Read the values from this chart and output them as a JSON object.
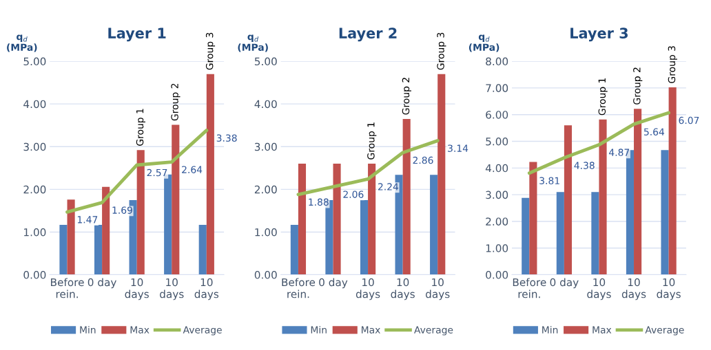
{
  "chart_data": [
    {
      "type": "bar",
      "title": "Layer 1",
      "ylabel": "q$_{d}$\n(MPa)",
      "categories": [
        "Before\nrein.",
        "0 day",
        "10\ndays",
        "10\ndays",
        "10\ndays"
      ],
      "ylim": [
        0,
        5
      ],
      "yticks": [
        {
          "value": 0,
          "label": "0.00"
        },
        {
          "value": 1,
          "label": "1.00"
        },
        {
          "value": 2,
          "label": "2.00"
        },
        {
          "value": 3,
          "label": "3.00"
        },
        {
          "value": 4,
          "label": "4.00"
        },
        {
          "value": 5,
          "label": "5.00"
        }
      ],
      "grid": "y",
      "legend": "bottom",
      "series": [
        {
          "name": "Min",
          "type": "bar",
          "color": "#4f81bd",
          "values": [
            1.17,
            1.17,
            1.75,
            2.35,
            1.17
          ]
        },
        {
          "name": "Max",
          "type": "bar",
          "color": "#c0504d",
          "values": [
            1.76,
            2.06,
            2.92,
            3.51,
            4.7
          ]
        },
        {
          "name": "Average",
          "type": "line",
          "color": "#9bbb59",
          "values": [
            1.47,
            1.69,
            2.57,
            2.64,
            3.38
          ],
          "value_labels": [
            "1.47",
            "1.69",
            "2.57",
            "2.64",
            "3.38"
          ]
        }
      ],
      "annotations": [
        "Group 1",
        "Group 2",
        "Group 3"
      ]
    },
    {
      "type": "bar",
      "title": "Layer 2",
      "ylabel": "q$_{d}$\n(MPa)",
      "categories": [
        "Before\nrein.",
        "0 day",
        "10\ndays",
        "10\ndays",
        "10\ndays"
      ],
      "ylim": [
        0,
        5
      ],
      "yticks": [
        {
          "value": 0,
          "label": "0.00"
        },
        {
          "value": 1,
          "label": "1.00"
        },
        {
          "value": 2,
          "label": "2.00"
        },
        {
          "value": 3,
          "label": "3.00"
        },
        {
          "value": 4,
          "label": "4.00"
        },
        {
          "value": 5,
          "label": "5.00"
        }
      ],
      "grid": "y",
      "legend": "bottom",
      "series": [
        {
          "name": "Min",
          "type": "bar",
          "color": "#4f81bd",
          "values": [
            1.17,
            1.75,
            1.75,
            2.34,
            2.34
          ]
        },
        {
          "name": "Max",
          "type": "bar",
          "color": "#c0504d",
          "values": [
            2.6,
            2.6,
            2.6,
            3.65,
            4.7
          ]
        },
        {
          "name": "Average",
          "type": "line",
          "color": "#9bbb59",
          "values": [
            1.88,
            2.06,
            2.24,
            2.86,
            3.14
          ],
          "value_labels": [
            "1.88",
            "2.06",
            "2.24",
            "2.86",
            "3.14"
          ]
        }
      ],
      "annotations": [
        "Group 1",
        "Group 2",
        "Group 3"
      ]
    },
    {
      "type": "bar",
      "title": "Layer 3",
      "ylabel": "q$_{d}$\n(MPa)",
      "categories": [
        "Before\nrein.",
        "0 day",
        "10\ndays",
        "10\ndays",
        "10\ndays"
      ],
      "ylim": [
        0,
        8
      ],
      "yticks": [
        {
          "value": 0,
          "label": "0.00"
        },
        {
          "value": 1,
          "label": "1.00"
        },
        {
          "value": 2,
          "label": "2.00"
        },
        {
          "value": 3,
          "label": "3.00"
        },
        {
          "value": 4,
          "label": "4.00"
        },
        {
          "value": 5,
          "label": "5.00"
        },
        {
          "value": 6,
          "label": "6.00"
        },
        {
          "value": 7,
          "label": "7.00"
        },
        {
          "value": 8,
          "label": "8.00"
        }
      ],
      "grid": "y",
      "legend": "bottom",
      "series": [
        {
          "name": "Min",
          "type": "bar",
          "color": "#4f81bd",
          "values": [
            2.88,
            3.1,
            3.1,
            4.67,
            4.67
          ]
        },
        {
          "name": "Max",
          "type": "bar",
          "color": "#c0504d",
          "values": [
            4.23,
            5.6,
            5.82,
            6.22,
            7.02
          ]
        },
        {
          "name": "Average",
          "type": "line",
          "color": "#9bbb59",
          "values": [
            3.81,
            4.38,
            4.87,
            5.64,
            6.07
          ],
          "value_labels": [
            "3.81",
            "4.38",
            "4.87",
            "5.64",
            "6.07"
          ]
        }
      ],
      "annotations": [
        "Group 1",
        "Group 2",
        "Group 3"
      ]
    }
  ]
}
